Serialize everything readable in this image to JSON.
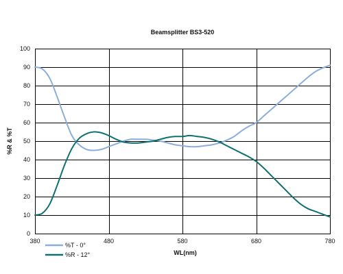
{
  "chart_data": {
    "type": "line",
    "title": "Beamsplitter BS3-520",
    "xlabel": "WL(nm)",
    "ylabel": "%R & %T",
    "xlim": [
      380,
      780
    ],
    "ylim": [
      0,
      100
    ],
    "x_ticks": [
      380,
      480,
      580,
      680,
      780
    ],
    "y_ticks": [
      0,
      10,
      20,
      30,
      40,
      50,
      60,
      70,
      80,
      90,
      100
    ],
    "x_tick_labels": [
      "380",
      "480",
      "580",
      "680",
      "780"
    ],
    "y_tick_labels": [
      "0",
      "10",
      "20",
      "30",
      "40",
      "50",
      "60",
      "70",
      "80",
      "90",
      "100"
    ],
    "grid": true,
    "legend_position": "bottom-left",
    "series": [
      {
        "name": "%T - 0°",
        "color": "#8aaedb",
        "x": [
          380,
          390,
          400,
          410,
          420,
          430,
          440,
          450,
          460,
          470,
          480,
          490,
          500,
          510,
          520,
          530,
          540,
          550,
          560,
          570,
          580,
          590,
          600,
          610,
          620,
          630,
          640,
          650,
          660,
          670,
          680,
          690,
          700,
          710,
          720,
          730,
          740,
          750,
          760,
          770,
          780
        ],
        "values": [
          90,
          89,
          84,
          74,
          63,
          53,
          48,
          45.5,
          45,
          45.5,
          47,
          48.5,
          50,
          51,
          51,
          51,
          50.5,
          50,
          49,
          48,
          47.5,
          47,
          47,
          47.5,
          48,
          49,
          50.5,
          52.5,
          55.5,
          58,
          60,
          63.5,
          67,
          70.5,
          74,
          77.5,
          81,
          84.5,
          87.5,
          89.5,
          91
        ]
      },
      {
        "name": "%R - 12°",
        "color": "#0e7070",
        "x": [
          380,
          390,
          400,
          410,
          420,
          430,
          440,
          450,
          460,
          470,
          480,
          490,
          500,
          510,
          520,
          530,
          540,
          550,
          560,
          570,
          580,
          590,
          600,
          610,
          620,
          630,
          640,
          650,
          660,
          670,
          680,
          690,
          700,
          710,
          720,
          730,
          740,
          750,
          760,
          770,
          780
        ],
        "values": [
          10,
          11,
          16,
          26,
          37,
          46,
          51.5,
          54,
          55,
          54.5,
          53,
          51,
          49.5,
          49,
          49,
          49.5,
          50,
          51,
          52,
          52.5,
          52.5,
          53,
          52.5,
          52,
          51,
          49.5,
          47.5,
          45.5,
          43.5,
          41.5,
          39,
          35.5,
          31.5,
          27.5,
          23.5,
          19.5,
          16,
          13.5,
          12,
          10.5,
          9
        ]
      }
    ]
  }
}
